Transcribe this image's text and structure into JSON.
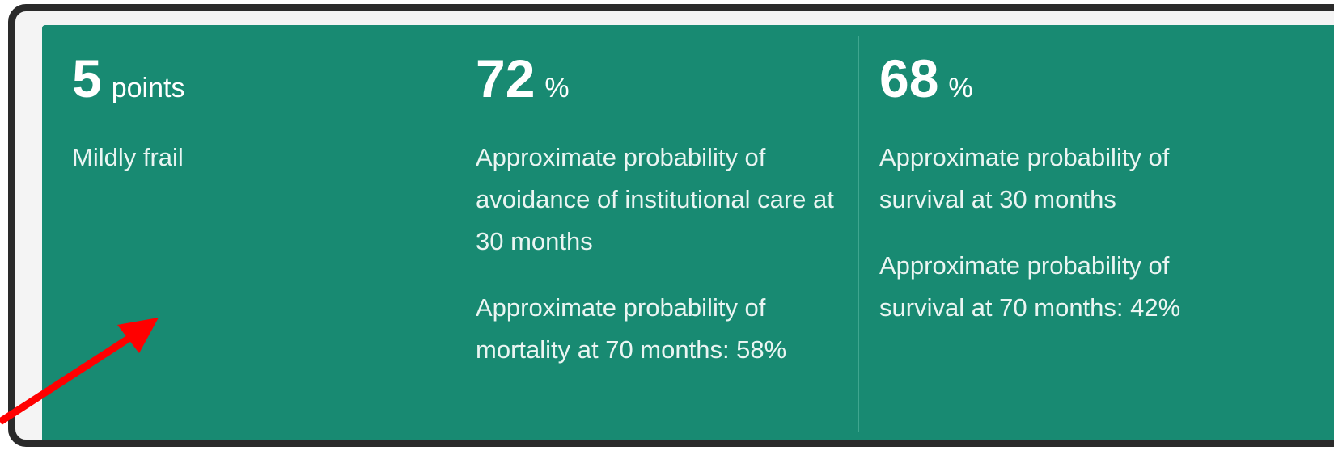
{
  "panel": {
    "columns": [
      {
        "value": 5,
        "unit": "points",
        "descriptions": [
          "Mildly frail"
        ]
      },
      {
        "value": 72,
        "unit": "%",
        "descriptions": [
          "Approximate probability of avoidance of institutional care at 30 months",
          "Approximate probability of mortality at 70 months: 58%"
        ]
      },
      {
        "value": 68,
        "unit": "%",
        "descriptions": [
          "Approximate probability of survival at 30 months",
          "Approximate probability of survival at 70 months: 42%"
        ]
      }
    ]
  }
}
